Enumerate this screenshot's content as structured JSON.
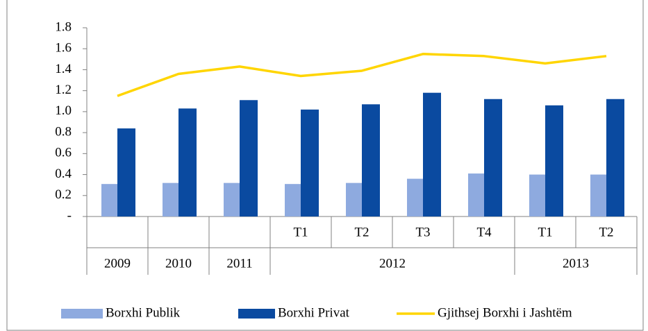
{
  "chart_data": {
    "type": "bar",
    "categories": [
      null,
      null,
      null,
      "T1",
      "T2",
      "T3",
      "T4",
      "T1",
      "T2"
    ],
    "groups": [
      {
        "label": "2009",
        "span": 1
      },
      {
        "label": "2010",
        "span": 1
      },
      {
        "label": "2011",
        "span": 1
      },
      {
        "label": "2012",
        "span": 4
      },
      {
        "label": "2013",
        "span": 2
      }
    ],
    "series": [
      {
        "name": "Borxhi Publik",
        "type": "bar",
        "color": "#8eaadf",
        "values": [
          0.31,
          0.32,
          0.32,
          0.31,
          0.32,
          0.36,
          0.41,
          0.4,
          0.4
        ]
      },
      {
        "name": "Borxhi Privat",
        "type": "bar",
        "color": "#0a4aa0",
        "values": [
          0.84,
          1.03,
          1.11,
          1.02,
          1.07,
          1.18,
          1.12,
          1.06,
          1.12
        ]
      },
      {
        "name": "Gjithsej Borxhi i Jashtëm",
        "type": "line",
        "color": "#ffd500",
        "values": [
          1.15,
          1.36,
          1.43,
          1.34,
          1.39,
          1.55,
          1.53,
          1.46,
          1.53
        ]
      }
    ],
    "ylim": [
      0,
      1.8
    ],
    "yticks": [
      {
        "value": 0,
        "label": "-"
      },
      0.2,
      0.4,
      0.6,
      0.8,
      {
        "value": 1,
        "label": "1.0"
      },
      1.2,
      1.4,
      1.6,
      1.8
    ],
    "legend": "bottom"
  }
}
